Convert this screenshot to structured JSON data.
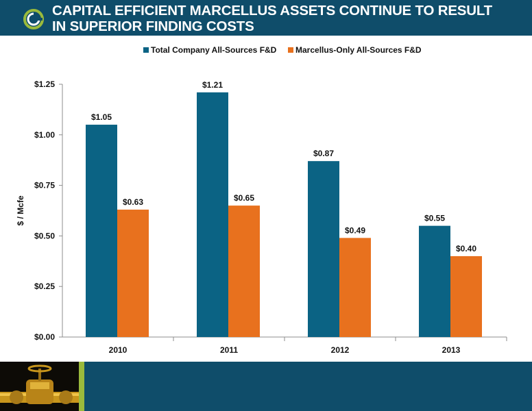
{
  "header": {
    "title_line1": "CAPITAL EFFICIENT MARCELLUS ASSETS CONTINUE TO RESULT",
    "title_line2": "IN SUPERIOR FINDING COSTS",
    "logo_icon": "company-logo-icon"
  },
  "colors": {
    "header_bg": "#0f4d6a",
    "series_total": "#0b6384",
    "series_marcellus": "#e8711e",
    "footer_stripe": "#9aba3c"
  },
  "chart_data": {
    "type": "bar",
    "categories": [
      "2010",
      "2011",
      "2012",
      "2013"
    ],
    "series": [
      {
        "name": "Total Company All-Sources F&D",
        "values": [
          1.05,
          1.21,
          0.87,
          0.55
        ],
        "labels": [
          "$1.05",
          "$1.21",
          "$0.87",
          "$0.55"
        ],
        "color": "#0b6384"
      },
      {
        "name": "Marcellus-Only All-Sources F&D",
        "values": [
          0.63,
          0.65,
          0.49,
          0.4
        ],
        "labels": [
          "$0.63",
          "$0.65",
          "$0.49",
          "$0.40"
        ],
        "color": "#e8711e"
      }
    ],
    "ylabel": "$ / Mcfe",
    "ylim": [
      0,
      1.25
    ],
    "yticks": [
      0,
      0.25,
      0.5,
      0.75,
      1.0,
      1.25
    ],
    "ytick_labels": [
      "$0.00",
      "$0.25",
      "$0.50",
      "$0.75",
      "$1.00",
      "$1.25"
    ],
    "legend_position": "top-center",
    "grid": false
  }
}
